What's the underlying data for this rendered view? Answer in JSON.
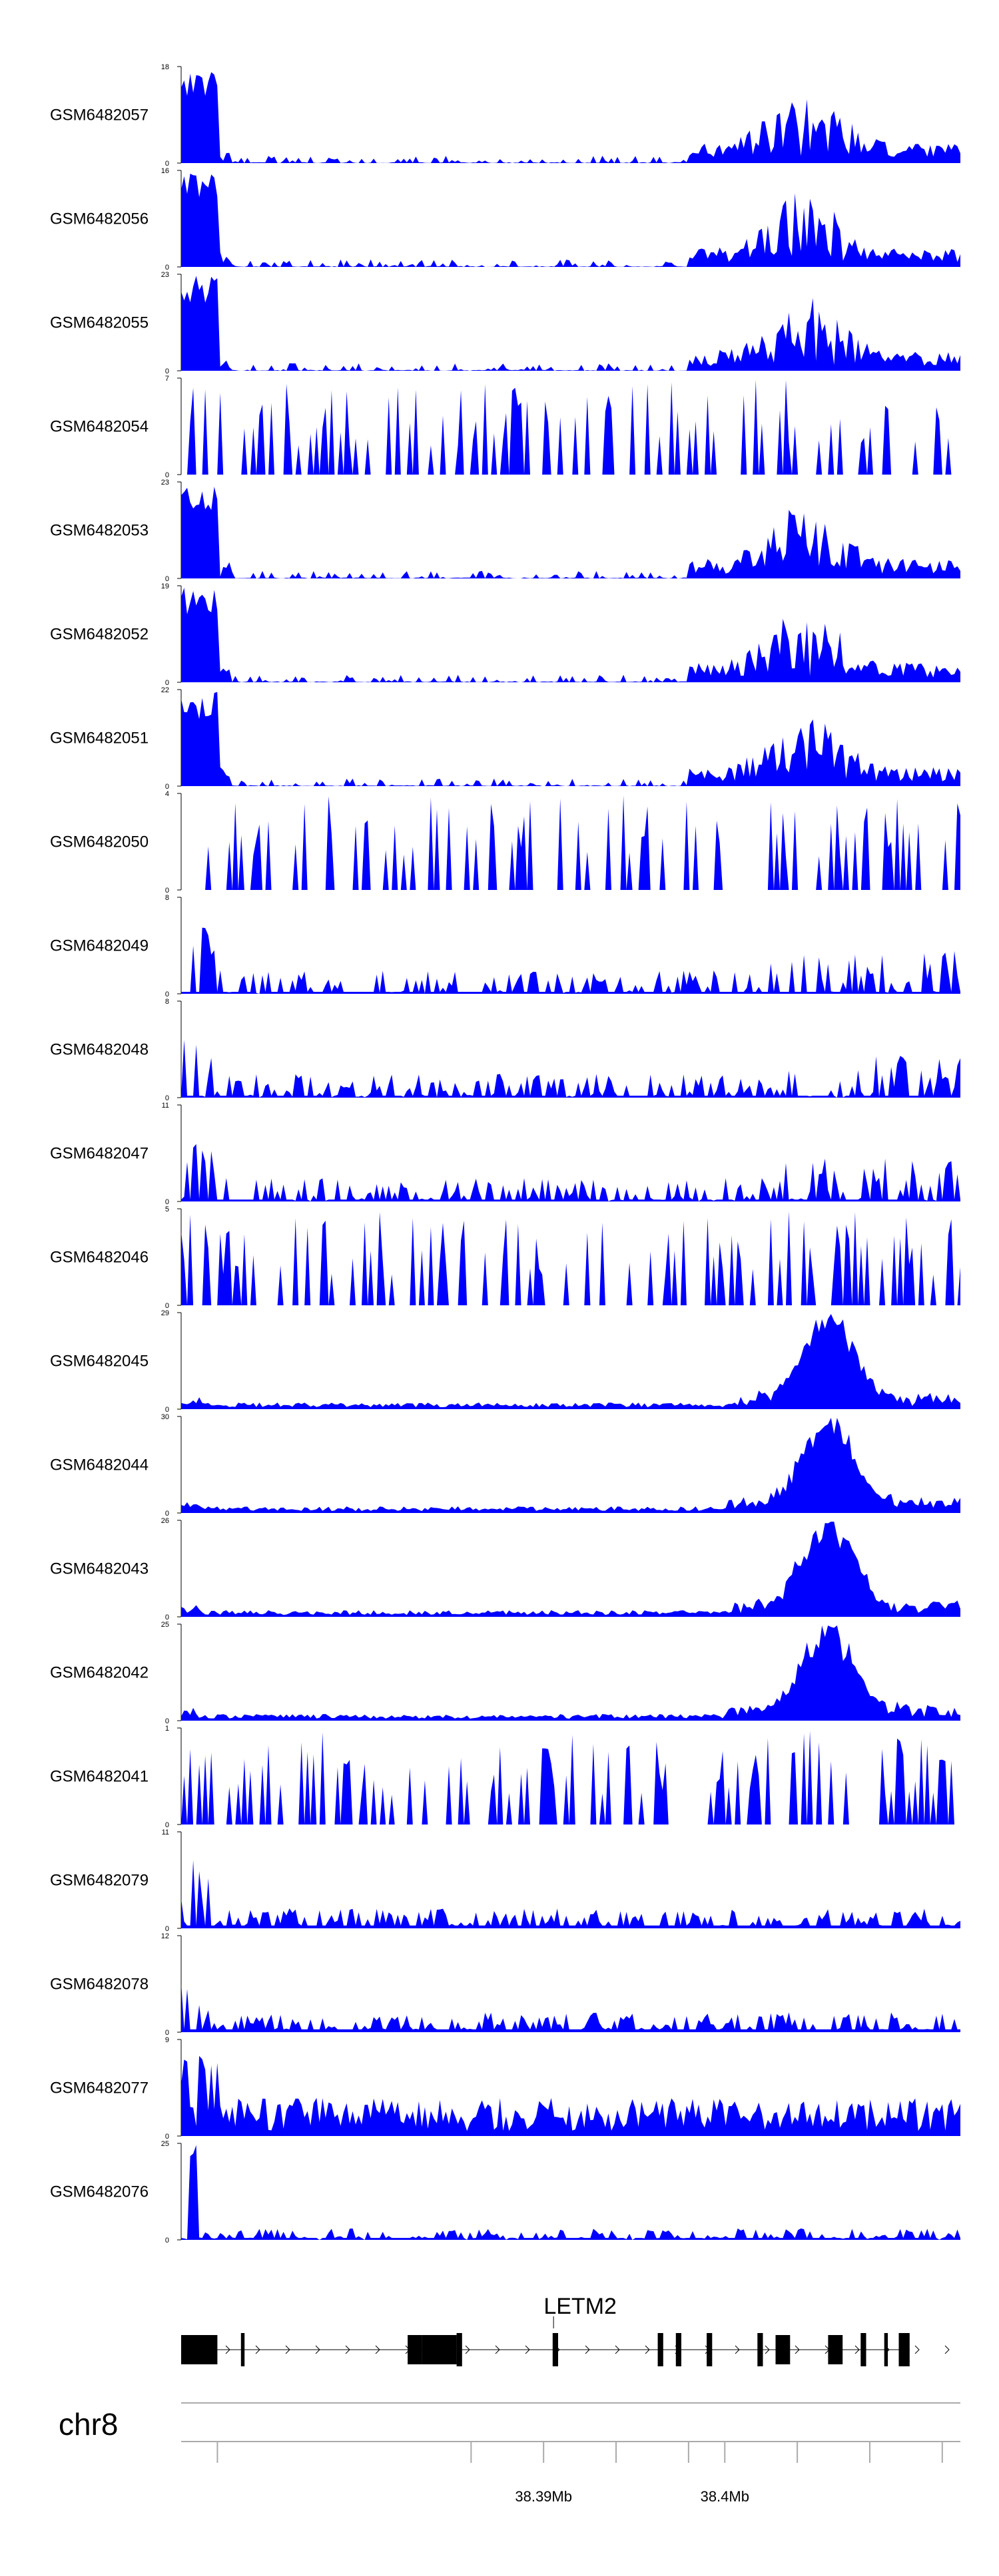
{
  "chart_data": {
    "type": "area",
    "title": "",
    "region": {
      "chromosome": "chr8",
      "start_mb": 38.37,
      "end_mb": 38.413
    },
    "fill_color": "#0000ff",
    "x_tick_labels": [
      {
        "mb": 38.39,
        "label": "38.39Mb"
      },
      {
        "mb": 38.4,
        "label": "38.4Mb"
      }
    ],
    "x_minor_ticks_mb": [
      38.372,
      38.386,
      38.39,
      38.394,
      38.398,
      38.4,
      38.404,
      38.408,
      38.412
    ],
    "tracks": [
      {
        "name": "GSM6482057",
        "ymax": "18",
        "ymin": "0",
        "max": 18,
        "profile": "peaks_left_right"
      },
      {
        "name": "GSM6482056",
        "ymax": "16",
        "ymin": "0",
        "max": 16,
        "profile": "peaks_left_right"
      },
      {
        "name": "GSM6482055",
        "ymax": "23",
        "ymin": "0",
        "max": 23,
        "profile": "peaks_left_right"
      },
      {
        "name": "GSM6482054",
        "ymax": "7",
        "ymin": "0",
        "max": 7,
        "profile": "sparse"
      },
      {
        "name": "GSM6482053",
        "ymax": "23",
        "ymin": "0",
        "max": 23,
        "profile": "peaks_left_right"
      },
      {
        "name": "GSM6482052",
        "ymax": "19",
        "ymin": "0",
        "max": 19,
        "profile": "peaks_left_right"
      },
      {
        "name": "GSM6482051",
        "ymax": "22",
        "ymin": "0",
        "max": 22,
        "profile": "peaks_left_right"
      },
      {
        "name": "GSM6482050",
        "ymax": "4",
        "ymin": "0",
        "max": 4,
        "profile": "sparse"
      },
      {
        "name": "GSM6482049",
        "ymax": "8",
        "ymin": "0",
        "max": 8,
        "profile": "noisy"
      },
      {
        "name": "GSM6482048",
        "ymax": "8",
        "ymin": "0",
        "max": 8,
        "profile": "noisy"
      },
      {
        "name": "GSM6482047",
        "ymax": "11",
        "ymin": "0",
        "max": 11,
        "profile": "noisy"
      },
      {
        "name": "GSM6482046",
        "ymax": "5",
        "ymin": "0",
        "max": 5,
        "profile": "sparse"
      },
      {
        "name": "GSM6482045",
        "ymax": "29",
        "ymin": "0",
        "max": 29,
        "profile": "peak_right"
      },
      {
        "name": "GSM6482044",
        "ymax": "30",
        "ymin": "0",
        "max": 30,
        "profile": "peak_right"
      },
      {
        "name": "GSM6482043",
        "ymax": "26",
        "ymin": "0",
        "max": 26,
        "profile": "peak_right"
      },
      {
        "name": "GSM6482042",
        "ymax": "25",
        "ymin": "0",
        "max": 25,
        "profile": "peak_right"
      },
      {
        "name": "GSM6482041",
        "ymax": "1",
        "ymin": "0",
        "max": 1,
        "profile": "sparse"
      },
      {
        "name": "GSM6482079",
        "ymax": "11",
        "ymin": "0",
        "max": 11,
        "profile": "wavy"
      },
      {
        "name": "GSM6482078",
        "ymax": "12",
        "ymin": "0",
        "max": 12,
        "profile": "wavy"
      },
      {
        "name": "GSM6482077",
        "ymax": "9",
        "ymin": "0",
        "max": 9,
        "profile": "wavy_dense"
      },
      {
        "name": "GSM6482076",
        "ymax": "25",
        "ymin": "0",
        "max": 25,
        "profile": "spike_left"
      }
    ],
    "gene": {
      "name": "LETM2",
      "strand": "+",
      "exons_mb": [
        [
          38.37,
          38.372
        ],
        [
          38.3733,
          38.3735
        ],
        [
          38.3825,
          38.3833
        ],
        [
          38.3833,
          38.3852
        ],
        [
          38.3852,
          38.3855
        ],
        [
          38.3905,
          38.3908
        ],
        [
          38.3963,
          38.3966
        ],
        [
          38.3973,
          38.3976
        ],
        [
          38.399,
          38.3993
        ],
        [
          38.4018,
          38.4021
        ],
        [
          38.4028,
          38.4036
        ],
        [
          38.4057,
          38.4065
        ],
        [
          38.4075,
          38.4078
        ],
        [
          38.4088,
          38.409
        ],
        [
          38.4096,
          38.4102
        ]
      ]
    }
  }
}
